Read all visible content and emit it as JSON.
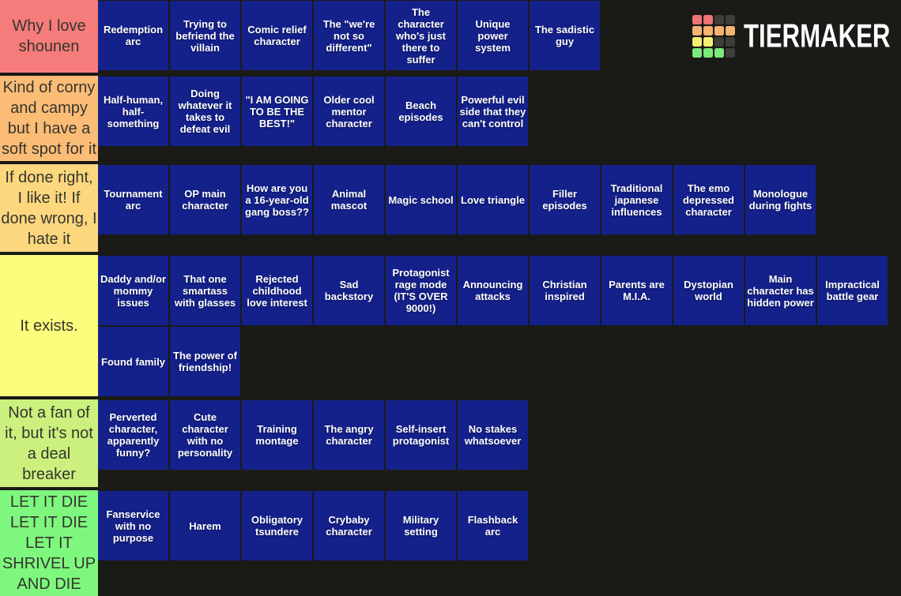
{
  "logo": {
    "text": "TIERMAKER",
    "grid_colors": [
      [
        "#f07474",
        "#f07474",
        "#3d3d3a",
        "#3d3d3a"
      ],
      [
        "#f5b371",
        "#f5b371",
        "#f5b371",
        "#f5b371"
      ],
      [
        "#f6ef73",
        "#f6ef73",
        "#3d3d3a",
        "#3d3d3a"
      ],
      [
        "#7de87c",
        "#7de87c",
        "#7de87c",
        "#3d3d3a"
      ]
    ]
  },
  "palette": {
    "background": "#1a1a17",
    "tile_blue": "#14218b",
    "tile_text": "#ffffff",
    "label_text": "#35352e"
  },
  "tiers": [
    {
      "label": "Why I love shounen",
      "color": "#f57c7b",
      "items": [
        "Redemption arc",
        "Trying to befriend the villain",
        "Comic relief character",
        "The \"we're not so different\"",
        "The character who's just there to suffer",
        "Unique power system",
        "The sadistic guy"
      ]
    },
    {
      "label": "Kind of corny and campy but I have a soft spot for it",
      "color": "#fbbc76",
      "items": [
        "Half-human, half-something",
        "Doing whatever it takes to defeat evil",
        "\"I AM GOING TO BE THE BEST!\"",
        "Older cool mentor character",
        "Beach episodes",
        "Powerful evil side that they can't control"
      ]
    },
    {
      "label": "If done right, I like it! If done wrong, I hate it",
      "color": "#fdd77e",
      "items": [
        "Tournament arc",
        "OP main character",
        "How are you a 16-year-old gang boss??",
        "Animal mascot",
        "Magic school",
        "Love triangle",
        "Filler episodes",
        "Traditional japanese influences",
        "The emo depressed character",
        "Monologue during fights"
      ]
    },
    {
      "label": "It exists.",
      "color": "#fdfd7d",
      "items": [
        "Daddy and/or mommy issues",
        "That one smartass with glasses",
        "Rejected childhood love interest",
        "Sad backstory",
        "Protagonist rage mode (IT'S OVER 9000!)",
        "Announcing attacks",
        "Christian inspired",
        "Parents are M.I.A.",
        "Dystopian world",
        "Main character has hidden power",
        "Impractical battle gear",
        "Found family",
        "The power of friendship!"
      ]
    },
    {
      "label": "Not a fan of it, but it's not a deal breaker",
      "color": "#cbf07d",
      "items": [
        "Perverted character, apparently funny?",
        "Cute character with no personality",
        "Training montage",
        "The angry character",
        "Self-insert protagonist",
        "No stakes whatsoever"
      ]
    },
    {
      "label": "LET IT DIE LET IT DIE LET IT SHRIVEL UP AND DIE",
      "color": "#7ef77e",
      "items": [
        "Fanservice with no purpose",
        "Harem",
        "Obligatory tsundere",
        "Crybaby character",
        "Military setting",
        "Flashback arc"
      ]
    }
  ]
}
